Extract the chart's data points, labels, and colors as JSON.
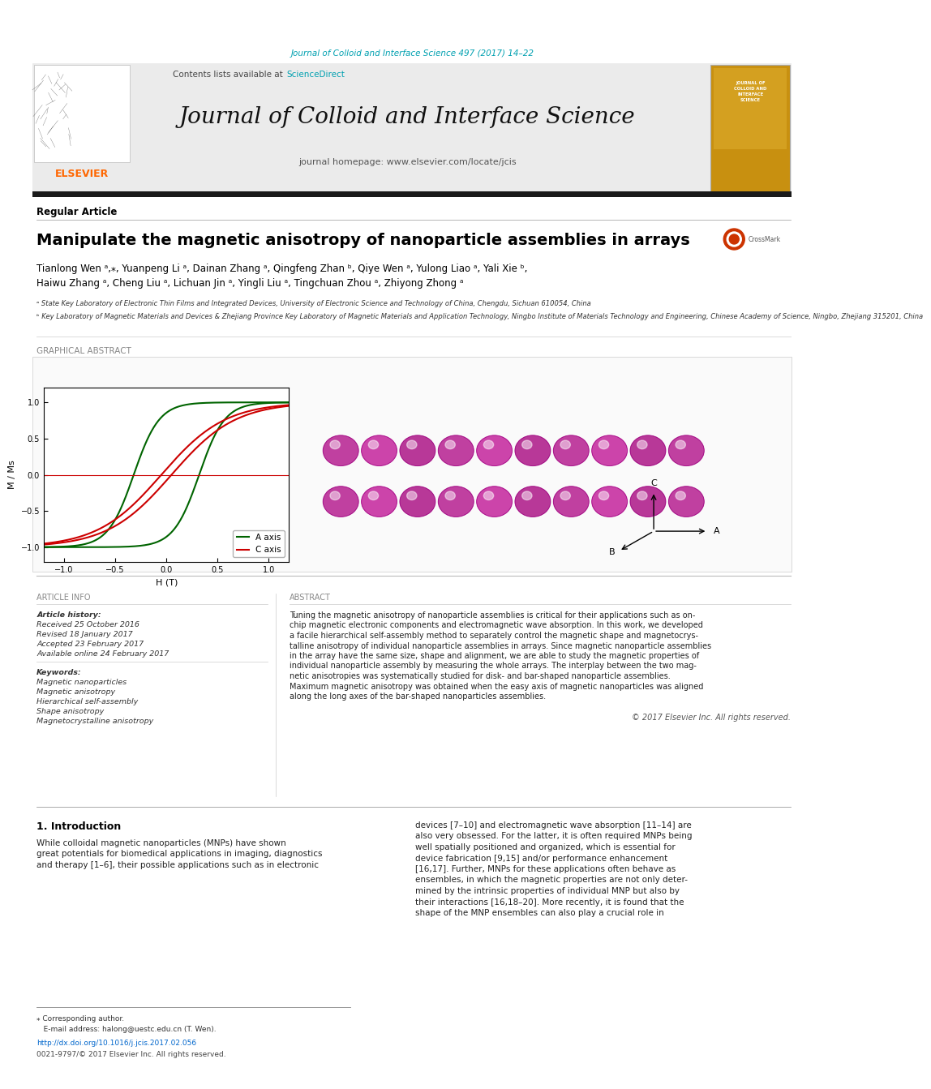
{
  "journal_info": "Journal of Colloid and Interface Science 497 (2017) 14–22",
  "journal_name": "Journal of Colloid and Interface Science",
  "journal_homepage": "journal homepage: www.elsevier.com/locate/jcis",
  "contents_line": "Contents lists available at ScienceDirect",
  "article_type": "Regular Article",
  "title": "Manipulate the magnetic anisotropy of nanoparticle assemblies in arrays",
  "authors_line1": "Tianlong Wen ᵃ,⁎, Yuanpeng Li ᵃ, Dainan Zhang ᵃ, Qingfeng Zhan ᵇ, Qiye Wen ᵃ, Yulong Liao ᵃ, Yali Xie ᵇ,",
  "authors_line2": "Haiwu Zhang ᵃ, Cheng Liu ᵃ, Lichuan Jin ᵃ, Yingli Liu ᵃ, Tingchuan Zhou ᵃ, Zhiyong Zhong ᵃ",
  "affil_a": "ᵃ State Key Laboratory of Electronic Thin Films and Integrated Devices, University of Electronic Science and Technology of China, Chengdu, Sichuan 610054, China",
  "affil_b": "ᵇ Key Laboratory of Magnetic Materials and Devices & Zhejiang Province Key Laboratory of Magnetic Materials and Application Technology, Ningbo Institute of Materials Technology and Engineering, Chinese Academy of Science, Ningbo, Zhejiang 315201, China",
  "section_graphical": "GRAPHICAL ABSTRACT",
  "section_article_info": "ARTICLE INFO",
  "article_history_label": "Article history:",
  "received": "Received 25 October 2016",
  "revised": "Revised 18 January 2017",
  "accepted": "Accepted 23 February 2017",
  "available": "Available online 24 February 2017",
  "keywords_label": "Keywords:",
  "keywords": [
    "Magnetic nanoparticles",
    "Magnetic anisotropy",
    "Hierarchical self-assembly",
    "Shape anisotropy",
    "Magnetocrystalline anisotropy"
  ],
  "section_abstract": "ABSTRACT",
  "abstract_line1": "Tuning the magnetic anisotropy of nanoparticle assemblies is critical for their applications such as on-",
  "abstract_line2": "chip magnetic electronic components and electromagnetic wave absorption. In this work, we developed",
  "abstract_line3": "a facile hierarchical self-assembly method to separately control the magnetic shape and magnetocrys-",
  "abstract_line4": "talline anisotropy of individual nanoparticle assemblies in arrays. Since magnetic nanoparticle assemblies",
  "abstract_line5": "in the array have the same size, shape and alignment, we are able to study the magnetic properties of",
  "abstract_line6": "individual nanoparticle assembly by measuring the whole arrays. The interplay between the two mag-",
  "abstract_line7": "netic anisotropies was systematically studied for disk- and bar-shaped nanoparticle assemblies.",
  "abstract_line8": "Maximum magnetic anisotropy was obtained when the easy axis of magnetic nanoparticles was aligned",
  "abstract_line9": "along the long axes of the bar-shaped nanoparticles assemblies.",
  "copyright": "© 2017 Elsevier Inc. All rights reserved.",
  "section_intro": "1. Introduction",
  "intro_col1_line1": "While colloidal magnetic nanoparticles (MNPs) have shown",
  "intro_col1_line2": "great potentials for biomedical applications in imaging, diagnostics",
  "intro_col1_line3": "and therapy [1–6], their possible applications such as in electronic",
  "intro_col2_line1": "devices [7–10] and electromagnetic wave absorption [11–14] are",
  "intro_col2_line2": "also very obsessed. For the latter, it is often required MNPs being",
  "intro_col2_line3": "well spatially positioned and organized, which is essential for",
  "intro_col2_line4": "device fabrication [9,15] and/or performance enhancement",
  "intro_col2_line5": "[16,17]. Further, MNPs for these applications often behave as",
  "intro_col2_line6": "ensembles, in which the magnetic properties are not only deter-",
  "intro_col2_line7": "mined by the intrinsic properties of individual MNP but also by",
  "intro_col2_line8": "their interactions [16,18–20]. More recently, it is found that the",
  "intro_col2_line9": "shape of the MNP ensembles can also play a crucial role in",
  "footnote_star": "⁎ Corresponding author.",
  "footnote_email": "   E-mail address: halong@uestc.edu.cn (T. Wen).",
  "footnote_doi": "http://dx.doi.org/10.1016/j.jcis.2017.02.056",
  "footnote_issn": "0021-9797/© 2017 Elsevier Inc. All rights reserved.",
  "elsevier_color": "#FF6600",
  "sciencedirect_color": "#00A0B0",
  "title_color": "#000000",
  "black_bar_color": "#1a1a1a",
  "hysteresis_a_color": "#006400",
  "hysteresis_c_color": "#CC0000",
  "link_color": "#0066CC",
  "legend_a_label": "A axis",
  "legend_c_label": "C axis",
  "plot_xlabel": "H (T)",
  "plot_ylabel": "M / Ms",
  "np_colors": [
    "#C040A0",
    "#CC44AA",
    "#B83898",
    "#C040A0",
    "#CC44AA",
    "#B83898",
    "#C040A0",
    "#CC44AA",
    "#B83898",
    "#C040A0"
  ]
}
